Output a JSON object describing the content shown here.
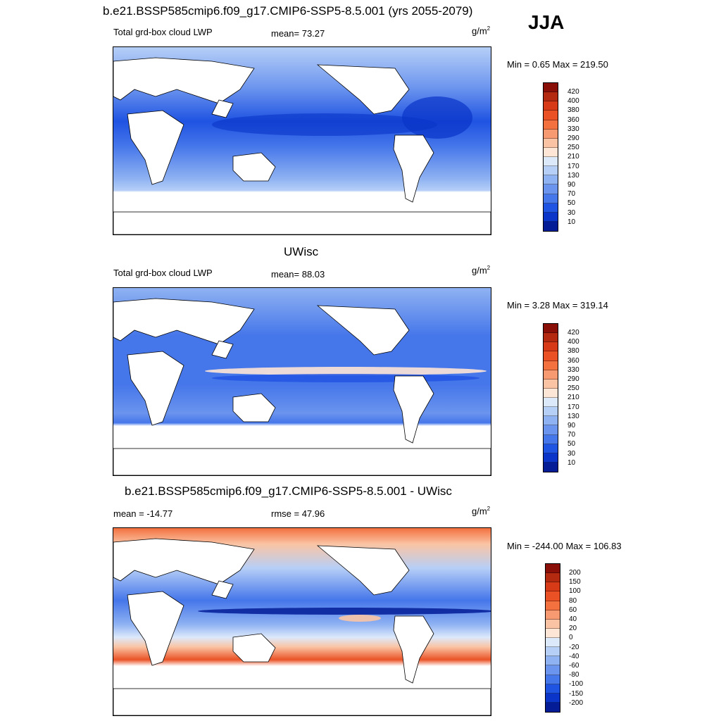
{
  "season": "JJA",
  "panels": [
    {
      "title": "b.e21.BSSP585cmip6.f09_g17.CMIP6-SSP5-8.5.001 (yrs 2055-2079)",
      "left_label": "Total grd-box cloud LWP",
      "center_label": "mean=  73.27",
      "units": "g/m",
      "units_sup": "2",
      "minmax": "Min =   0.65 Max = 219.50",
      "colorbar": "abs"
    },
    {
      "title": "UWisc",
      "left_label": "Total grd-box cloud LWP",
      "center_label": "mean=  88.03",
      "units": "g/m",
      "units_sup": "2",
      "minmax": "Min =   3.28 Max = 319.14",
      "colorbar": "abs"
    },
    {
      "title": "b.e21.BSSP585cmip6.f09_g17.CMIP6-SSP5-8.5.001 - UWisc",
      "left_label": "mean = -14.77",
      "center_label": "rmse =  47.96",
      "units": "g/m",
      "units_sup": "2",
      "minmax": "Min = -244.00 Max = 106.83",
      "colorbar": "diff"
    }
  ],
  "colorbars": {
    "abs": {
      "labels": [
        "420",
        "400",
        "380",
        "360",
        "330",
        "290",
        "250",
        "210",
        "170",
        "130",
        "90",
        "70",
        "50",
        "30",
        "10"
      ],
      "colors": [
        "#8a0f08",
        "#b32a10",
        "#d63a16",
        "#ea5226",
        "#f3713f",
        "#f79a72",
        "#fac4a4",
        "#fde6d6",
        "#dce9fb",
        "#b6cff7",
        "#8fb2f2",
        "#6b94ee",
        "#4576ea",
        "#1f53e2",
        "#0a35c8",
        "#041c96"
      ]
    },
    "diff": {
      "labels": [
        "200",
        "150",
        "100",
        "80",
        "60",
        "40",
        "20",
        "0",
        "-20",
        "-40",
        "-60",
        "-80",
        "-100",
        "-150",
        "-200"
      ],
      "colors": [
        "#8a0f08",
        "#b32a10",
        "#d63a16",
        "#ea5226",
        "#f3713f",
        "#f79a72",
        "#fac4a4",
        "#fde6d6",
        "#dce9fb",
        "#b6cff7",
        "#8fb2f2",
        "#6b94ee",
        "#4576ea",
        "#1f53e2",
        "#0a35c8",
        "#041c96"
      ]
    }
  }
}
